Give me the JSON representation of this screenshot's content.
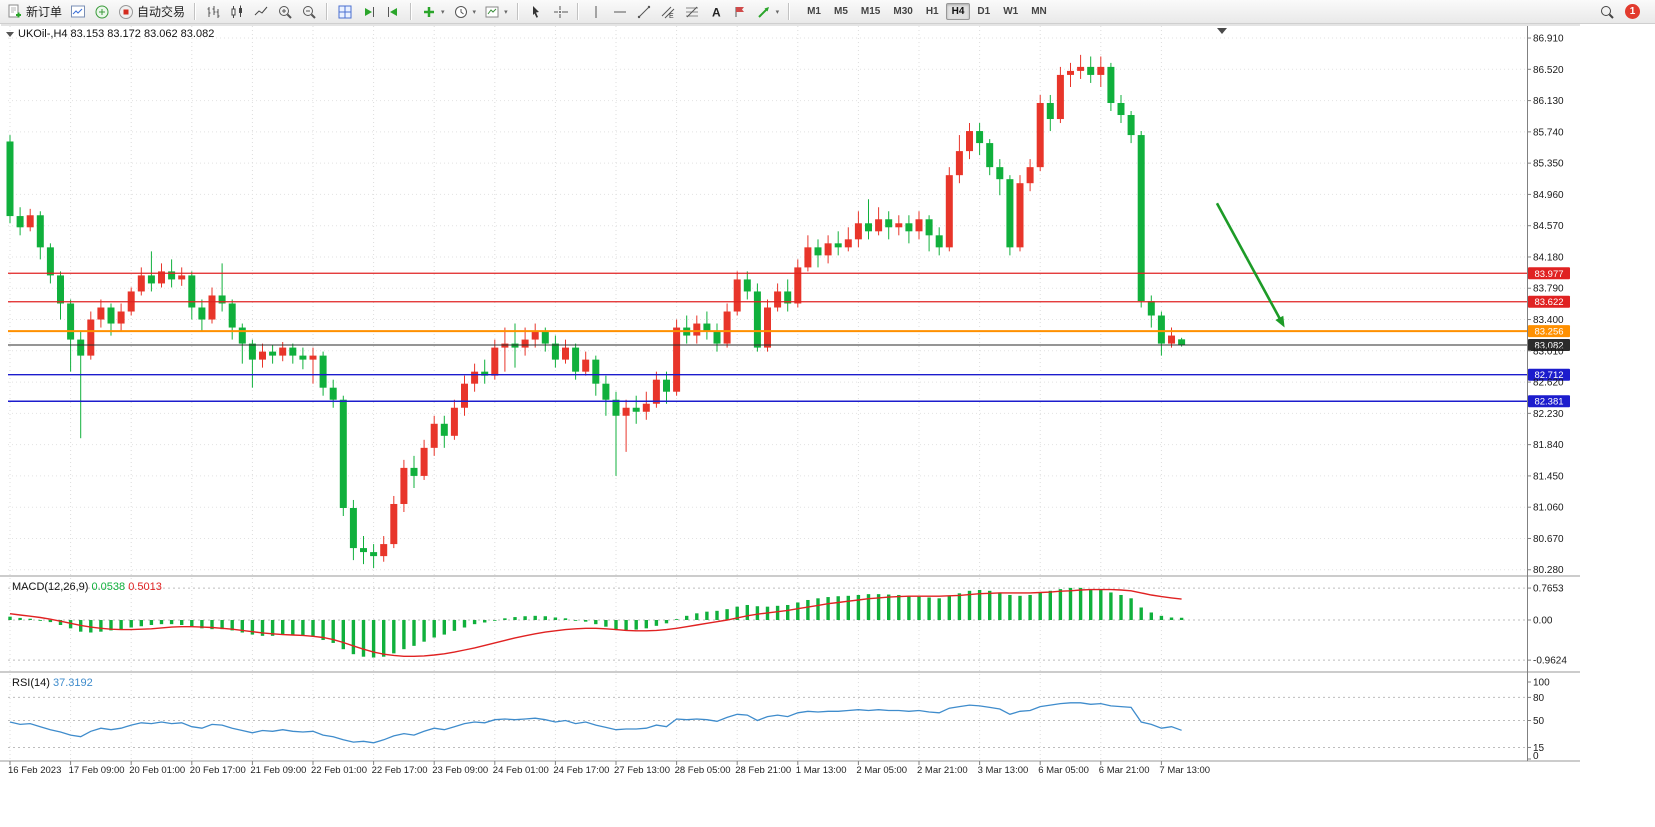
{
  "toolbar": {
    "new_order_label": "新订单",
    "auto_trading_label": "自动交易",
    "timeframes": [
      {
        "label": "M1",
        "active": false
      },
      {
        "label": "M5",
        "active": false
      },
      {
        "label": "M15",
        "active": false
      },
      {
        "label": "M30",
        "active": false
      },
      {
        "label": "H1",
        "active": false
      },
      {
        "label": "H4",
        "active": true
      },
      {
        "label": "D1",
        "active": false
      },
      {
        "label": "W1",
        "active": false
      },
      {
        "label": "MN",
        "active": false
      }
    ],
    "notification_count": "1"
  },
  "chart_data": [
    {
      "type": "candlestick",
      "title": "UKOil-,H4",
      "ohlc_readout": {
        "open": "83.153",
        "high": "83.172",
        "low": "83.062",
        "close": "83.082"
      },
      "ylim": [
        80.202,
        87.06
      ],
      "y_ticks": [
        "86.910",
        "86.520",
        "86.130",
        "85.740",
        "85.350",
        "84.960",
        "84.570",
        "84.180",
        "83.790",
        "83.400",
        "83.010",
        "82.620",
        "82.230",
        "81.840",
        "81.450",
        "81.060",
        "80.670",
        "80.280"
      ],
      "x_labels": [
        "16 Feb 2023",
        "17 Feb 09:00",
        "20 Feb 01:00",
        "20 Feb 17:00",
        "21 Feb 09:00",
        "22 Feb 01:00",
        "22 Feb 17:00",
        "23 Feb 09:00",
        "24 Feb 01:00",
        "24 Feb 17:00",
        "27 Feb 13:00",
        "28 Feb 05:00",
        "28 Feb 21:00",
        "1 Mar 13:00",
        "2 Mar 05:00",
        "2 Mar 21:00",
        "3 Mar 13:00",
        "6 Mar 05:00",
        "6 Mar 21:00",
        "7 Mar 13:00"
      ],
      "candles_per_label": 6,
      "up_color": "#e8352a",
      "down_color": "#10b03c",
      "candles": [
        [
          85.62,
          85.7,
          84.6,
          84.69
        ],
        [
          84.69,
          84.8,
          84.45,
          84.55
        ],
        [
          84.55,
          84.78,
          84.5,
          84.7
        ],
        [
          84.7,
          84.75,
          84.15,
          84.3
        ],
        [
          84.3,
          84.35,
          83.85,
          83.95
        ],
        [
          83.95,
          84.0,
          83.4,
          83.6
        ],
        [
          83.6,
          83.65,
          82.75,
          83.15
        ],
        [
          83.15,
          83.25,
          81.92,
          82.95
        ],
        [
          82.95,
          83.5,
          82.9,
          83.4
        ],
        [
          83.4,
          83.65,
          83.3,
          83.55
        ],
        [
          83.55,
          83.6,
          83.2,
          83.35
        ],
        [
          83.35,
          83.6,
          83.25,
          83.5
        ],
        [
          83.5,
          83.8,
          83.45,
          83.75
        ],
        [
          83.75,
          84.05,
          83.7,
          83.95
        ],
        [
          83.95,
          84.25,
          83.75,
          83.85
        ],
        [
          83.85,
          84.1,
          83.8,
          84.0
        ],
        [
          84.0,
          84.15,
          83.8,
          83.9
        ],
        [
          83.9,
          84.05,
          83.82,
          83.95
        ],
        [
          83.95,
          84.0,
          83.4,
          83.55
        ],
        [
          83.55,
          83.65,
          83.25,
          83.4
        ],
        [
          83.4,
          83.8,
          83.35,
          83.7
        ],
        [
          83.7,
          84.1,
          83.5,
          83.6
        ],
        [
          83.6,
          83.65,
          83.15,
          83.3
        ],
        [
          83.3,
          83.35,
          82.85,
          83.1
        ],
        [
          83.1,
          83.15,
          82.55,
          82.9
        ],
        [
          82.9,
          83.1,
          82.8,
          83.0
        ],
        [
          83.0,
          83.08,
          82.85,
          82.95
        ],
        [
          82.95,
          83.12,
          82.88,
          83.05
        ],
        [
          83.05,
          83.1,
          82.85,
          82.95
        ],
        [
          82.95,
          83.05,
          82.78,
          82.9
        ],
        [
          82.9,
          83.05,
          82.6,
          82.95
        ],
        [
          82.95,
          83.0,
          82.45,
          82.55
        ],
        [
          82.55,
          82.65,
          82.3,
          82.4
        ],
        [
          82.4,
          82.45,
          80.95,
          81.05
        ],
        [
          81.05,
          81.15,
          80.4,
          80.55
        ],
        [
          80.55,
          80.7,
          80.35,
          80.5
        ],
        [
          80.5,
          80.6,
          80.3,
          80.45
        ],
        [
          80.45,
          80.7,
          80.38,
          80.6
        ],
        [
          80.6,
          81.2,
          80.55,
          81.1
        ],
        [
          81.1,
          81.65,
          81.0,
          81.55
        ],
        [
          81.55,
          81.7,
          81.3,
          81.45
        ],
        [
          81.45,
          81.9,
          81.4,
          81.8
        ],
        [
          81.8,
          82.2,
          81.7,
          82.1
        ],
        [
          82.1,
          82.2,
          81.8,
          81.95
        ],
        [
          81.95,
          82.4,
          81.9,
          82.3
        ],
        [
          82.3,
          82.7,
          82.2,
          82.6
        ],
        [
          82.6,
          82.85,
          82.5,
          82.75
        ],
        [
          82.75,
          82.9,
          82.6,
          82.7
        ],
        [
          82.7,
          83.15,
          82.65,
          83.05
        ],
        [
          83.05,
          83.3,
          82.75,
          83.1
        ],
        [
          83.1,
          83.35,
          82.8,
          83.05
        ],
        [
          83.05,
          83.3,
          82.95,
          83.15
        ],
        [
          83.15,
          83.35,
          83.05,
          83.25
        ],
        [
          83.25,
          83.3,
          83.0,
          83.1
        ],
        [
          83.1,
          83.2,
          82.8,
          82.9
        ],
        [
          82.9,
          83.15,
          82.85,
          83.05
        ],
        [
          83.05,
          83.1,
          82.65,
          82.75
        ],
        [
          82.75,
          83.0,
          82.7,
          82.9
        ],
        [
          82.9,
          82.95,
          82.45,
          82.6
        ],
        [
          82.6,
          82.7,
          82.2,
          82.4
        ],
        [
          82.4,
          82.5,
          81.45,
          82.2
        ],
        [
          82.2,
          82.4,
          81.75,
          82.3
        ],
        [
          82.3,
          82.45,
          82.1,
          82.25
        ],
        [
          82.25,
          82.5,
          82.15,
          82.35
        ],
        [
          82.35,
          82.75,
          82.3,
          82.65
        ],
        [
          82.65,
          82.75,
          82.35,
          82.5
        ],
        [
          82.5,
          83.4,
          82.45,
          83.3
        ],
        [
          83.3,
          83.45,
          83.1,
          83.2
        ],
        [
          83.2,
          83.45,
          83.1,
          83.35
        ],
        [
          83.35,
          83.5,
          83.15,
          83.25
        ],
        [
          83.25,
          83.35,
          83.0,
          83.1
        ],
        [
          83.1,
          83.6,
          83.05,
          83.5
        ],
        [
          83.5,
          84.0,
          83.45,
          83.9
        ],
        [
          83.9,
          84.0,
          83.65,
          83.75
        ],
        [
          83.75,
          83.85,
          83.0,
          83.05
        ],
        [
          83.05,
          83.65,
          83.0,
          83.55
        ],
        [
          83.55,
          83.85,
          83.5,
          83.75
        ],
        [
          83.75,
          83.9,
          83.5,
          83.6
        ],
        [
          83.6,
          84.15,
          83.55,
          84.05
        ],
        [
          84.05,
          84.45,
          84.0,
          84.3
        ],
        [
          84.3,
          84.4,
          84.05,
          84.2
        ],
        [
          84.2,
          84.45,
          84.1,
          84.35
        ],
        [
          84.35,
          84.5,
          84.2,
          84.3
        ],
        [
          84.3,
          84.55,
          84.25,
          84.4
        ],
        [
          84.4,
          84.75,
          84.3,
          84.6
        ],
        [
          84.6,
          84.9,
          84.4,
          84.5
        ],
        [
          84.5,
          84.8,
          84.45,
          84.65
        ],
        [
          84.65,
          84.75,
          84.4,
          84.55
        ],
        [
          84.55,
          84.7,
          84.45,
          84.6
        ],
        [
          84.6,
          84.7,
          84.35,
          84.5
        ],
        [
          84.5,
          84.75,
          84.4,
          84.65
        ],
        [
          84.65,
          84.7,
          84.25,
          84.45
        ],
        [
          84.45,
          84.55,
          84.2,
          84.3
        ],
        [
          84.3,
          85.3,
          84.25,
          85.2
        ],
        [
          85.2,
          85.7,
          85.1,
          85.5
        ],
        [
          85.5,
          85.85,
          85.4,
          85.75
        ],
        [
          85.75,
          85.85,
          85.45,
          85.6
        ],
        [
          85.6,
          85.65,
          85.2,
          85.3
        ],
        [
          85.3,
          85.4,
          84.95,
          85.15
        ],
        [
          85.15,
          85.2,
          84.2,
          84.3
        ],
        [
          84.3,
          85.2,
          84.25,
          85.1
        ],
        [
          85.1,
          85.4,
          85.0,
          85.3
        ],
        [
          85.3,
          86.2,
          85.25,
          86.1
        ],
        [
          86.1,
          86.2,
          85.75,
          85.9
        ],
        [
          85.9,
          86.55,
          85.85,
          86.45
        ],
        [
          86.45,
          86.6,
          86.3,
          86.5
        ],
        [
          86.5,
          86.7,
          86.4,
          86.55
        ],
        [
          86.55,
          86.68,
          86.35,
          86.45
        ],
        [
          86.45,
          86.68,
          86.3,
          86.55
        ],
        [
          86.55,
          86.6,
          86.0,
          86.1
        ],
        [
          86.1,
          86.2,
          85.85,
          85.95
        ],
        [
          85.95,
          86.0,
          85.6,
          85.7
        ],
        [
          85.7,
          85.75,
          83.55,
          83.63
        ],
        [
          83.63,
          83.7,
          83.3,
          83.45
        ],
        [
          83.45,
          83.5,
          82.95,
          83.1
        ],
        [
          83.1,
          83.3,
          83.05,
          83.2
        ],
        [
          83.153,
          83.172,
          83.062,
          83.082
        ]
      ],
      "levels": [
        {
          "price": 83.977,
          "label": "83.977",
          "color": "#e02222",
          "width": 1.3
        },
        {
          "price": 83.622,
          "label": "83.622",
          "color": "#e02222",
          "width": 1.3
        },
        {
          "price": 83.256,
          "label": "83.256",
          "color": "#ff9000",
          "width": 2
        },
        {
          "price": 83.082,
          "label": "83.082",
          "color": "#2b2b2b",
          "width": 1,
          "role": "current-price"
        },
        {
          "price": 82.712,
          "label": "82.712",
          "color": "#1c1ccd",
          "width": 1.4
        },
        {
          "price": 82.381,
          "label": "82.381",
          "color": "#1c1ccd",
          "width": 1.4
        }
      ],
      "annotations": [
        {
          "type": "arrow",
          "color": "#1d9b27",
          "from": {
            "index": 119.5,
            "price": 84.85
          },
          "to": {
            "index": 126.2,
            "price": 83.3
          }
        }
      ]
    },
    {
      "type": "macd",
      "title": "MACD(12,26,9)",
      "main_value": "0.0538",
      "signal_value": "0.5013",
      "ylim": [
        -1.247,
        1.055
      ],
      "y_ticks": [
        "0.7653",
        "0.00",
        "-0.9624"
      ],
      "histogram_color": "#10b03c",
      "signal_color": "#e02222",
      "histogram": [
        0.08,
        0.05,
        0.03,
        0,
        -0.05,
        -0.12,
        -0.2,
        -0.28,
        -0.3,
        -0.28,
        -0.25,
        -0.22,
        -0.18,
        -0.15,
        -0.12,
        -0.1,
        -0.1,
        -0.12,
        -0.15,
        -0.2,
        -0.22,
        -0.22,
        -0.25,
        -0.3,
        -0.35,
        -0.38,
        -0.38,
        -0.36,
        -0.35,
        -0.36,
        -0.4,
        -0.48,
        -0.55,
        -0.7,
        -0.82,
        -0.88,
        -0.9,
        -0.88,
        -0.8,
        -0.7,
        -0.62,
        -0.52,
        -0.42,
        -0.35,
        -0.26,
        -0.18,
        -0.1,
        -0.06,
        0.0,
        0.04,
        0.07,
        0.09,
        0.1,
        0.09,
        0.06,
        0.04,
        0.0,
        -0.04,
        -0.1,
        -0.16,
        -0.22,
        -0.24,
        -0.23,
        -0.2,
        -0.14,
        -0.08,
        0.02,
        0.1,
        0.16,
        0.2,
        0.22,
        0.26,
        0.32,
        0.36,
        0.33,
        0.32,
        0.34,
        0.36,
        0.42,
        0.48,
        0.52,
        0.55,
        0.57,
        0.58,
        0.6,
        0.62,
        0.62,
        0.61,
        0.6,
        0.58,
        0.56,
        0.54,
        0.52,
        0.58,
        0.64,
        0.7,
        0.72,
        0.7,
        0.66,
        0.6,
        0.58,
        0.6,
        0.66,
        0.7,
        0.74,
        0.77,
        0.77,
        0.74,
        0.72,
        0.66,
        0.6,
        0.52,
        0.3,
        0.18,
        0.1,
        0.06,
        0.0538
      ],
      "signal": [
        0.15,
        0.12,
        0.09,
        0.06,
        0.02,
        -0.03,
        -0.08,
        -0.13,
        -0.17,
        -0.2,
        -0.22,
        -0.23,
        -0.23,
        -0.22,
        -0.21,
        -0.19,
        -0.17,
        -0.16,
        -0.16,
        -0.17,
        -0.18,
        -0.2,
        -0.22,
        -0.25,
        -0.28,
        -0.31,
        -0.33,
        -0.35,
        -0.36,
        -0.37,
        -0.39,
        -0.42,
        -0.47,
        -0.54,
        -0.62,
        -0.7,
        -0.77,
        -0.82,
        -0.85,
        -0.87,
        -0.87,
        -0.86,
        -0.84,
        -0.81,
        -0.77,
        -0.72,
        -0.67,
        -0.61,
        -0.55,
        -0.49,
        -0.43,
        -0.38,
        -0.33,
        -0.29,
        -0.26,
        -0.23,
        -0.21,
        -0.2,
        -0.2,
        -0.21,
        -0.23,
        -0.25,
        -0.26,
        -0.26,
        -0.25,
        -0.23,
        -0.2,
        -0.16,
        -0.12,
        -0.08,
        -0.04,
        0.0,
        0.05,
        0.1,
        0.14,
        0.17,
        0.2,
        0.23,
        0.27,
        0.31,
        0.35,
        0.39,
        0.42,
        0.45,
        0.48,
        0.51,
        0.53,
        0.55,
        0.56,
        0.57,
        0.57,
        0.57,
        0.57,
        0.58,
        0.59,
        0.61,
        0.63,
        0.64,
        0.65,
        0.65,
        0.65,
        0.65,
        0.66,
        0.67,
        0.69,
        0.7,
        0.72,
        0.73,
        0.73,
        0.73,
        0.72,
        0.7,
        0.65,
        0.6,
        0.56,
        0.53,
        0.5013
      ]
    },
    {
      "type": "rsi",
      "title": "RSI(14)",
      "value": "37.3192",
      "ylim": [
        0,
        100
      ],
      "y_ticks": [
        "100",
        "80",
        "50",
        "15",
        "0"
      ],
      "levels": [
        80,
        50,
        15
      ],
      "line_color": "#3f8ccc",
      "values": [
        48,
        45,
        46,
        42,
        38,
        35,
        31,
        29,
        36,
        40,
        38,
        40,
        44,
        47,
        46,
        48,
        46,
        47,
        42,
        40,
        45,
        44,
        40,
        37,
        34,
        37,
        36,
        38,
        36,
        35,
        36,
        31,
        29,
        25,
        22,
        23,
        21,
        25,
        30,
        33,
        31,
        36,
        40,
        38,
        42,
        46,
        48,
        47,
        51,
        52,
        51,
        52,
        53,
        51,
        48,
        50,
        46,
        48,
        44,
        41,
        38,
        39,
        39,
        40,
        44,
        42,
        52,
        51,
        52,
        51,
        49,
        54,
        58,
        57,
        50,
        55,
        57,
        55,
        60,
        62,
        61,
        62,
        62,
        63,
        64,
        63,
        64,
        63,
        63,
        62,
        63,
        61,
        60,
        66,
        68,
        70,
        69,
        67,
        65,
        58,
        62,
        63,
        68,
        70,
        72,
        73,
        73,
        71,
        72,
        69,
        68,
        67,
        48,
        45,
        40,
        42,
        37.3
      ]
    }
  ]
}
